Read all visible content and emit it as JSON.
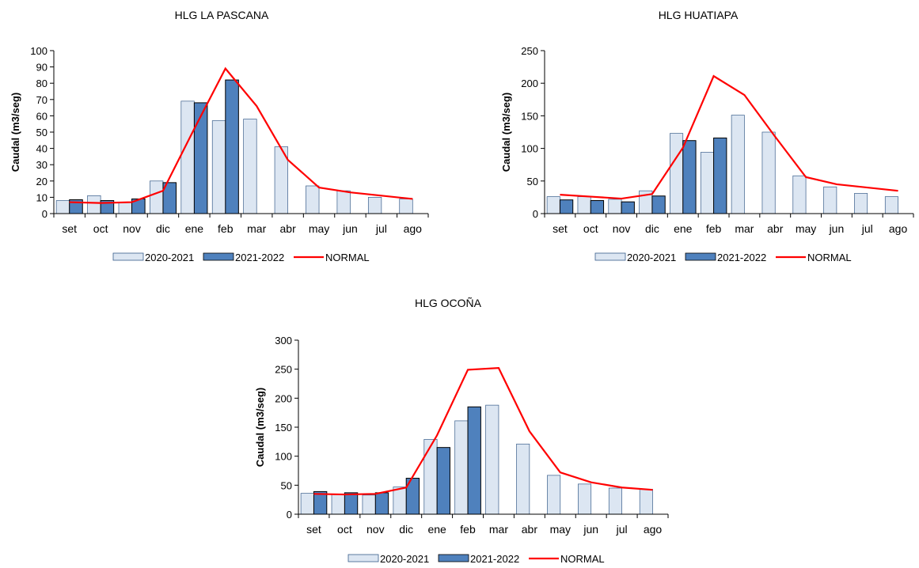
{
  "chart_data": [
    {
      "type": "bar",
      "title": "HLG LA PASCANA",
      "xlabel": "",
      "ylabel": "Caudal (m3/seg)",
      "ylim": [
        0,
        100
      ],
      "yticks": [
        0,
        10,
        20,
        30,
        40,
        50,
        60,
        70,
        80,
        90,
        100
      ],
      "categories": [
        "set",
        "oct",
        "nov",
        "dic",
        "ene",
        "feb",
        "mar",
        "abr",
        "may",
        "jun",
        "jul",
        "ago"
      ],
      "series": [
        {
          "name": "2020-2021",
          "type": "bar",
          "color": "#dce6f2",
          "values": [
            8,
            11,
            7,
            20,
            69,
            57,
            58,
            41,
            17,
            14,
            10,
            9
          ]
        },
        {
          "name": "2021-2022",
          "type": "bar",
          "color": "#4f81bd",
          "values": [
            8.5,
            8,
            9,
            19,
            68,
            82,
            null,
            null,
            null,
            null,
            null,
            null
          ]
        },
        {
          "name": "NORMAL",
          "type": "line",
          "color": "#ff0000",
          "values": [
            7,
            6.5,
            7,
            14,
            52,
            89,
            66,
            33,
            16,
            13,
            11,
            9
          ]
        }
      ],
      "legend": "bottom",
      "grid": false
    },
    {
      "type": "bar",
      "title": "HLG HUATIAPA",
      "xlabel": "",
      "ylabel": "Caudal (m3/seg)",
      "ylim": [
        0,
        250
      ],
      "yticks": [
        0,
        50,
        100,
        150,
        200,
        250
      ],
      "categories": [
        "set",
        "oct",
        "nov",
        "dic",
        "ene",
        "feb",
        "mar",
        "abr",
        "may",
        "jun",
        "jul",
        "ago"
      ],
      "series": [
        {
          "name": "2020-2021",
          "type": "bar",
          "color": "#dce6f2",
          "values": [
            26,
            26,
            22,
            35,
            123,
            94,
            151,
            125,
            58,
            41,
            31,
            26
          ]
        },
        {
          "name": "2021-2022",
          "type": "bar",
          "color": "#4f81bd",
          "values": [
            21,
            20,
            18,
            27,
            112,
            116,
            null,
            null,
            null,
            null,
            null,
            null
          ]
        },
        {
          "name": "NORMAL",
          "type": "line",
          "color": "#ff0000",
          "values": [
            29,
            26,
            23,
            30,
            101,
            211,
            182,
            118,
            56,
            45,
            40,
            35
          ]
        }
      ],
      "legend": "bottom",
      "grid": false
    },
    {
      "type": "bar",
      "title": "HLG OCOÑA",
      "xlabel": "",
      "ylabel": "Caudal (m3/seg)",
      "ylim": [
        0,
        300
      ],
      "yticks": [
        0,
        50,
        100,
        150,
        200,
        250,
        300
      ],
      "categories": [
        "set",
        "oct",
        "nov",
        "dic",
        "ene",
        "feb",
        "mar",
        "abr",
        "may",
        "jun",
        "jul",
        "ago"
      ],
      "series": [
        {
          "name": "2020-2021",
          "type": "bar",
          "color": "#dce6f2",
          "values": [
            36,
            35,
            33,
            47,
            129,
            161,
            188,
            121,
            67,
            52,
            45,
            43
          ]
        },
        {
          "name": "2021-2022",
          "type": "bar",
          "color": "#4f81bd",
          "values": [
            39,
            37,
            37,
            62,
            115,
            185,
            null,
            null,
            null,
            null,
            null,
            null
          ]
        },
        {
          "name": "NORMAL",
          "type": "line",
          "color": "#ff0000",
          "values": [
            35,
            34,
            35,
            46,
            136,
            249,
            252,
            143,
            72,
            55,
            46,
            42
          ]
        }
      ],
      "legend": "bottom",
      "grid": false
    }
  ]
}
